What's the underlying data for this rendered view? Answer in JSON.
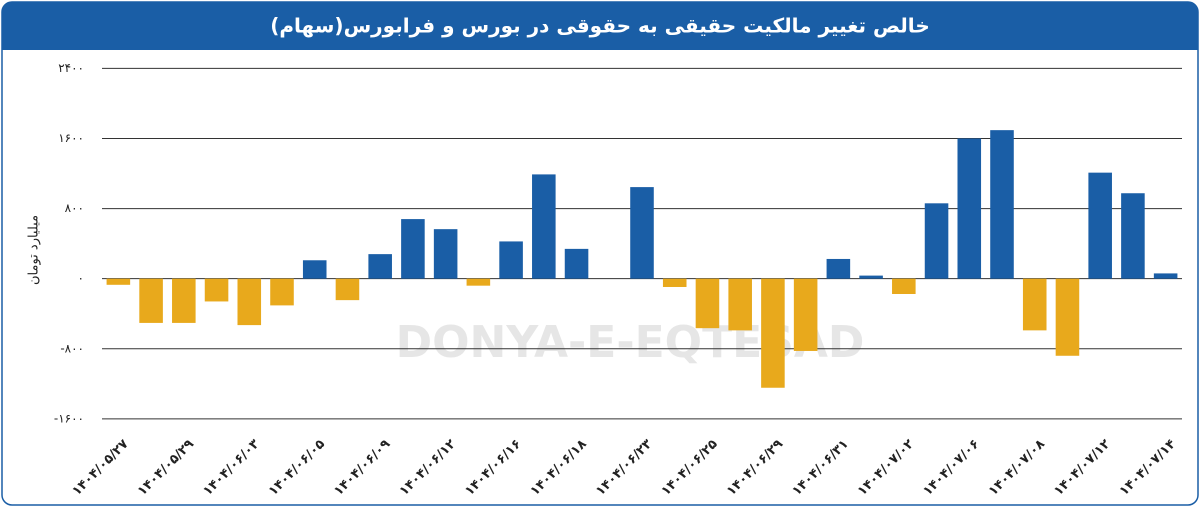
{
  "chart_data": {
    "type": "bar",
    "title": "خالص تغییر مالکیت حقیقی به حقوقی در بورس و فرابورس(سهام)",
    "y_label": "میلیارد تومان",
    "watermark": "DONYA-E-EQTESAD",
    "categories": [
      "۱۴۰۴/۰۵/۲۷",
      null,
      "۱۴۰۴/۰۵/۲۹",
      null,
      "۱۴۰۴/۰۶/۰۳",
      null,
      "۱۴۰۴/۰۶/۰۵",
      null,
      "۱۴۰۴/۰۶/۰۹",
      null,
      "۱۴۰۴/۰۶/۱۲",
      null,
      "۱۴۰۴/۰۶/۱۶",
      null,
      "۱۴۰۴/۰۶/۱۸",
      null,
      "۱۴۰۴/۰۶/۲۳",
      null,
      "۱۴۰۴/۰۶/۲۵",
      null,
      "۱۴۰۴/۰۶/۲۹",
      null,
      "۱۴۰۴/۰۶/۳۱",
      null,
      "۱۴۰۴/۰۷/۰۲",
      null,
      "۱۴۰۴/۰۷/۰۶",
      null,
      "۱۴۰۴/۰۷/۰۸",
      null,
      "۱۴۰۴/۰۷/۱۲",
      null,
      "۱۴۰۴/۰۷/۱۴"
    ],
    "values": [
      -70,
      -505,
      -505,
      -260,
      -530,
      -305,
      210,
      -245,
      280,
      680,
      565,
      -80,
      425,
      1190,
      340,
      0,
      1045,
      -95,
      -565,
      -590,
      -1245,
      -825,
      225,
      35,
      -175,
      860,
      1600,
      1695,
      -590,
      -880,
      1210,
      975,
      60
    ],
    "positive_color": "#1a5ea6",
    "negative_color": "#e8a91c",
    "ylim": [
      -1750,
      2450
    ],
    "yticks": [
      {
        "value": -1600,
        "label": "-۱۶۰۰"
      },
      {
        "value": -800,
        "label": "-۸۰۰"
      },
      {
        "value": 0,
        "label": "۰"
      },
      {
        "value": 800,
        "label": "۸۰۰"
      },
      {
        "value": 1600,
        "label": "۱۶۰۰"
      },
      {
        "value": 2400,
        "label": "۲۴۰۰"
      }
    ],
    "grid": true
  }
}
